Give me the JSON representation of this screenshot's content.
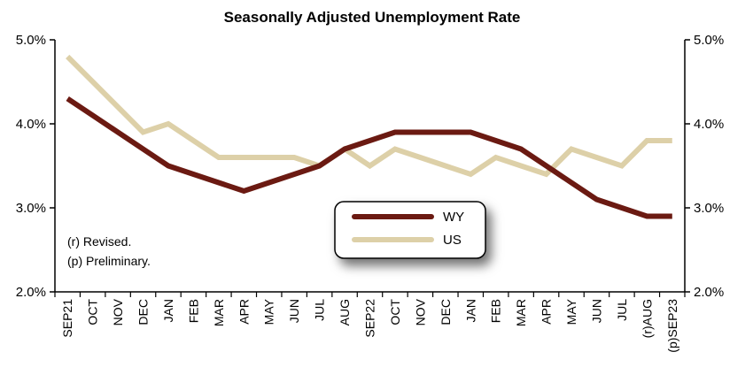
{
  "chart_data": {
    "type": "line",
    "title": "Seasonally Adjusted Unemployment Rate",
    "categories": [
      "SEP21",
      "OCT",
      "NOV",
      "DEC",
      "JAN",
      "FEB",
      "MAR",
      "APR",
      "MAY",
      "JUN",
      "JUL",
      "AUG",
      "SEP22",
      "OCT",
      "NOV",
      "DEC",
      "JAN",
      "FEB",
      "MAR",
      "APR",
      "MAY",
      "JUN",
      "JUL",
      "(r)AUG",
      "(p)SEP23"
    ],
    "series": [
      {
        "name": "WY",
        "color": "#6b1a12",
        "values": [
          4.3,
          4.1,
          3.9,
          3.7,
          3.5,
          3.4,
          3.3,
          3.2,
          3.3,
          3.4,
          3.5,
          3.7,
          3.8,
          3.9,
          3.9,
          3.9,
          3.9,
          3.8,
          3.7,
          3.5,
          3.3,
          3.1,
          3.0,
          2.9,
          2.9
        ]
      },
      {
        "name": "US",
        "color": "#ddd0a8",
        "values": [
          4.8,
          4.5,
          4.2,
          3.9,
          4.0,
          3.8,
          3.6,
          3.6,
          3.6,
          3.6,
          3.5,
          3.7,
          3.5,
          3.7,
          3.6,
          3.5,
          3.4,
          3.6,
          3.5,
          3.4,
          3.7,
          3.6,
          3.5,
          3.8,
          3.8
        ]
      }
    ],
    "ylim": [
      2.0,
      5.0
    ],
    "yticks": [
      "2.0%",
      "3.0%",
      "4.0%",
      "5.0%"
    ],
    "ytick_values": [
      2.0,
      3.0,
      4.0,
      5.0
    ],
    "grid": false,
    "legend": "center",
    "notes": [
      "(r) Revised.",
      "(p) Preliminary."
    ]
  }
}
